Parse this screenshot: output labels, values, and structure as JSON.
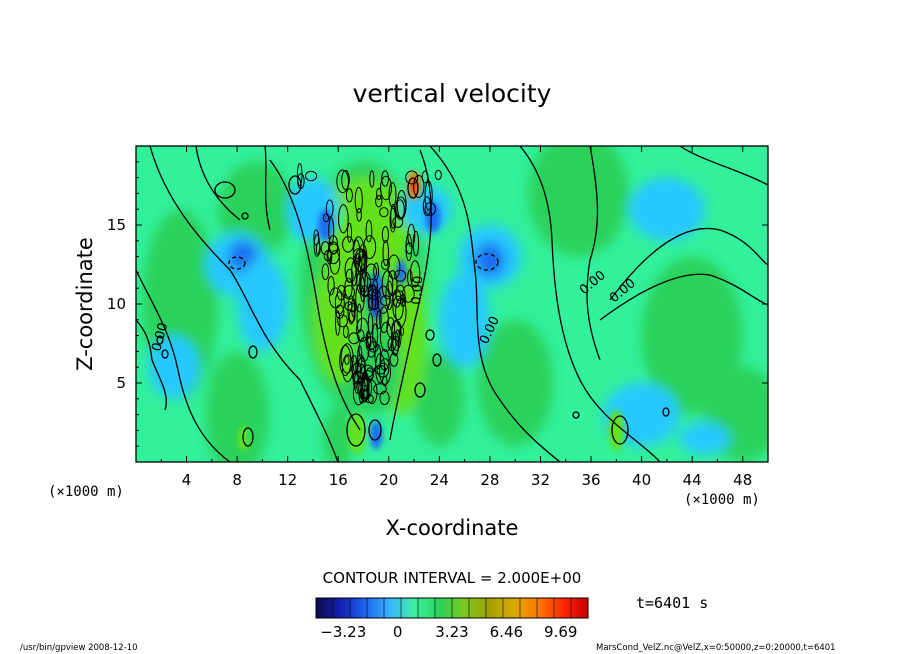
{
  "chart_data": {
    "type": "heatmap",
    "title": "vertical velocity",
    "xlabel": "X-coordinate",
    "ylabel": "Z-coordinate",
    "x_unit": "(×1000 m)",
    "y_unit": "(×1000 m)",
    "xlim": [
      0,
      50
    ],
    "ylim": [
      0,
      20
    ],
    "xticks": [
      4,
      8,
      12,
      16,
      20,
      24,
      28,
      32,
      36,
      40,
      44,
      48
    ],
    "yticks": [
      5,
      10,
      15
    ],
    "contour_interval_text": "CONTOUR INTERVAL = 2.000E+00",
    "contour_labels": [
      "0.00",
      "0.00",
      "0.00",
      "0.00",
      "0.00"
    ],
    "colorbar": {
      "ticks": [
        -3.23,
        0,
        3.23,
        6.46,
        9.69
      ],
      "tick_labels": [
        "−3.23",
        "0",
        "3.23",
        "6.46",
        "9.69"
      ],
      "range": [
        -4.85,
        11.31
      ],
      "colors": [
        "#0b0b4a",
        "#1420b4",
        "#1e64f0",
        "#3cb4ff",
        "#3cf0a0",
        "#2dd25a",
        "#78c81e",
        "#a0a000",
        "#dcaa00",
        "#ff7800",
        "#ff2800",
        "#c80000"
      ]
    },
    "time_label": "t=6401 s",
    "field_colors": {
      "background": "#33f09b",
      "green": "#2bd25b",
      "bright_green": "#63e21c",
      "light_blue": "#28c8ff",
      "blue": "#1a6ef0",
      "dark_blue": "#2020a0",
      "orange": "#ff7a00",
      "red": "#e01000"
    }
  },
  "footer": {
    "left": "/usr/bin/gpview   2008-12-10",
    "right": "MarsCond_VelZ.nc@VelZ,x=0:50000,z=0:20000,t=6401"
  }
}
